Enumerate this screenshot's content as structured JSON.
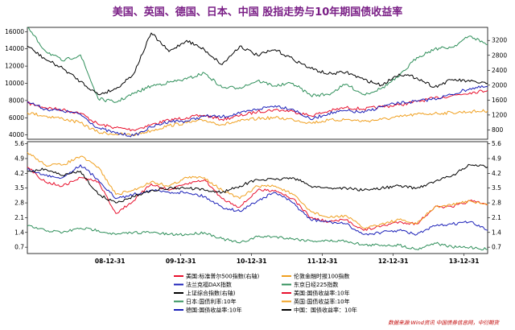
{
  "title": "美国、英国、德国、日本、中国 股指走势与10年期国债收益率",
  "source": "数据来源:Wind资讯 中国债券信息网，中衍期货",
  "chart_data": [
    {
      "type": "line",
      "panel": "top",
      "left_axis": {
        "ylim": [
          3500,
          16500
        ],
        "ticks": [
          4000,
          6000,
          8000,
          10000,
          12000,
          14000,
          16000
        ]
      },
      "right_axis": {
        "ylim": [
          550,
          3550
        ],
        "ticks": [
          800,
          1200,
          1600,
          2000,
          2400,
          2800,
          3200
        ]
      },
      "x": [
        "07-10",
        "08-01",
        "08-04",
        "08-07",
        "08-10",
        "09-01",
        "09-04",
        "09-07",
        "09-10",
        "10-01",
        "10-04",
        "10-07",
        "10-10",
        "11-01",
        "11-04",
        "11-07",
        "11-10",
        "12-01",
        "12-04",
        "12-07",
        "12-10",
        "13-01",
        "13-04",
        "13-07",
        "13-10",
        "14-01",
        "14-04"
      ],
      "series": [
        {
          "name": "美国:标准普尔500指数(右轴)",
          "axis": "right",
          "color": "#e8102d",
          "values": [
            1520,
            1400,
            1340,
            1250,
            950,
            860,
            800,
            940,
            1060,
            1130,
            1190,
            1080,
            1180,
            1290,
            1340,
            1300,
            1180,
            1300,
            1400,
            1360,
            1420,
            1470,
            1560,
            1650,
            1720,
            1800,
            1860
          ]
        },
        {
          "name": "伦敦金融时报100指数",
          "axis": "left",
          "color": "#f0a020",
          "values": [
            6600,
            6200,
            5900,
            5400,
            4300,
            4100,
            4000,
            4500,
            5100,
            5400,
            5700,
            5200,
            5600,
            5900,
            6000,
            5800,
            5400,
            5700,
            5800,
            5600,
            5800,
            6100,
            6400,
            6500,
            6600,
            6700,
            6800
          ]
        },
        {
          "name": "法兰克福DAX指数",
          "axis": "left",
          "color": "#1a1fb8",
          "values": [
            7900,
            7000,
            6800,
            6400,
            4800,
            4200,
            3900,
            4900,
            5600,
            5600,
            6200,
            6100,
            6500,
            7000,
            7400,
            7000,
            5800,
            6500,
            6800,
            6600,
            7300,
            7700,
            7900,
            8200,
            8700,
            9400,
            9600
          ]
        },
        {
          "name": "东京日经225指数",
          "axis": "left",
          "color": "#2f8f5a",
          "values": [
            16500,
            13800,
            12600,
            13300,
            8200,
            7800,
            8800,
            9700,
            10100,
            10500,
            11200,
            9500,
            9500,
            10300,
            9700,
            10000,
            8600,
            8700,
            9900,
            8700,
            9400,
            10800,
            13000,
            14000,
            14200,
            15500,
            14500
          ]
        },
        {
          "name": "上证综合指数(右轴)",
          "axis": "right",
          "color": "#000000",
          "values": [
            3050,
            2700,
            2450,
            2100,
            1750,
            1900,
            2300,
            3400,
            2900,
            3200,
            2950,
            2550,
            3050,
            2800,
            2950,
            2700,
            2450,
            2300,
            2350,
            2150,
            2000,
            2300,
            2200,
            1950,
            2150,
            2100,
            2050
          ]
        }
      ]
    },
    {
      "type": "line",
      "panel": "bottom",
      "ylim": [
        0.4,
        5.7
      ],
      "ticks": [
        0.7,
        1.4,
        2.1,
        2.8,
        3.5,
        4.2,
        4.9,
        5.6
      ],
      "x": [
        "07-10",
        "08-01",
        "08-04",
        "08-07",
        "08-10",
        "09-01",
        "09-04",
        "09-07",
        "09-10",
        "10-01",
        "10-04",
        "10-07",
        "10-10",
        "11-01",
        "11-04",
        "11-07",
        "11-10",
        "12-01",
        "12-04",
        "12-07",
        "12-10",
        "13-01",
        "13-04",
        "13-07",
        "13-10",
        "14-01",
        "14-04"
      ],
      "series": [
        {
          "name": "日本:国债利率:10年",
          "color": "#2f8f5a",
          "values": [
            1.7,
            1.5,
            1.4,
            1.6,
            1.5,
            1.3,
            1.4,
            1.4,
            1.3,
            1.3,
            1.4,
            1.1,
            0.9,
            1.2,
            1.2,
            1.1,
            1.0,
            1.0,
            1.0,
            0.8,
            0.8,
            0.8,
            0.6,
            0.9,
            0.7,
            0.7,
            0.6
          ]
        },
        {
          "name": "美国:国债收益率:10年",
          "color": "#e8102d",
          "values": [
            4.5,
            3.8,
            3.6,
            4.0,
            3.8,
            2.3,
            2.9,
            3.7,
            3.4,
            3.7,
            3.9,
            3.0,
            2.6,
            3.4,
            3.4,
            3.0,
            2.1,
            1.9,
            2.0,
            1.5,
            1.7,
            1.9,
            1.8,
            2.6,
            2.6,
            2.9,
            2.7
          ]
        },
        {
          "name": "英国:国债收益率:10年",
          "color": "#f0a020",
          "values": [
            5.2,
            4.6,
            4.6,
            5.0,
            4.5,
            3.2,
            3.4,
            3.8,
            3.6,
            4.0,
            4.0,
            3.4,
            3.0,
            3.6,
            3.6,
            3.2,
            2.4,
            2.1,
            2.2,
            1.6,
            1.8,
            2.0,
            1.8,
            2.6,
            2.7,
            2.9,
            2.7
          ]
        },
        {
          "name": "德国:国债收益率:10年",
          "color": "#1a1fb8",
          "values": [
            4.4,
            4.1,
            4.0,
            4.6,
            3.9,
            3.0,
            3.2,
            3.4,
            3.3,
            3.3,
            3.1,
            2.6,
            2.4,
            2.9,
            3.3,
            2.8,
            2.0,
            1.9,
            1.8,
            1.3,
            1.4,
            1.5,
            1.3,
            1.7,
            1.8,
            1.9,
            1.5
          ]
        },
        {
          "name": "中国：国债收益率：10年",
          "color": "#000000",
          "values": [
            4.3,
            4.4,
            4.1,
            4.3,
            3.2,
            2.8,
            3.1,
            3.4,
            3.5,
            3.5,
            3.4,
            3.3,
            3.6,
            3.9,
            3.9,
            4.0,
            3.6,
            3.5,
            3.5,
            3.4,
            3.5,
            3.6,
            3.5,
            3.8,
            4.1,
            4.6,
            4.5
          ]
        }
      ]
    }
  ],
  "x_axis": {
    "ticks": [
      {
        "x": "08-12",
        "label": "08-12-31"
      },
      {
        "x": "09-12",
        "label": "09-12-31"
      },
      {
        "x": "10-12",
        "label": "10-12-31"
      },
      {
        "x": "11-12",
        "label": "11-12-31"
      },
      {
        "x": "12-12",
        "label": "12-12-31"
      },
      {
        "x": "13-12",
        "label": "13-12-31"
      }
    ]
  },
  "legend": [
    {
      "label": "美国:标准普尔500指数(右轴)",
      "color": "#e8102d"
    },
    {
      "label": "伦敦金融时报100指数",
      "color": "#f0a020"
    },
    {
      "label": "法兰克福DAX指数",
      "color": "#1a1fb8"
    },
    {
      "label": "东京日经225指数",
      "color": "#2f8f5a"
    },
    {
      "label": "上证综合指数(右轴)",
      "color": "#000000"
    },
    {
      "label": "美国:国债收益率:10年",
      "color": "#e8102d"
    },
    {
      "label": "日本:国债利率:10年",
      "color": "#2f8f5a"
    },
    {
      "label": "英国:国债收益率:10年",
      "color": "#f0a020"
    },
    {
      "label": "德国:国债收益率:10年",
      "color": "#1a1fb8"
    },
    {
      "label": "中国：国债收益率：10年",
      "color": "#000000"
    }
  ]
}
